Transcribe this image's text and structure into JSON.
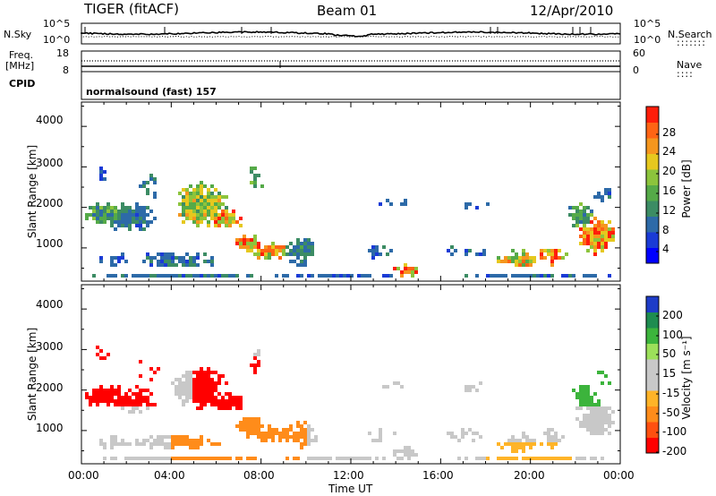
{
  "header": {
    "radar": "TIGER (fitACF)",
    "beam": "Beam 01",
    "date": "12/Apr/2010"
  },
  "left_labels": {
    "nsky": "N.Sky",
    "freq_line1": "Freq.",
    "freq_line2": "[MHz]",
    "cpid": "CPID"
  },
  "right_labels": {
    "nsearch": "N.Search",
    "nsearch_dots": ":::::::",
    "nave": "Nave",
    "nave_dots": "::::"
  },
  "noise_axis": {
    "top": "10^5",
    "bottom": "10^0"
  },
  "freq_axis": {
    "top": "18",
    "bottom": "8"
  },
  "nave_axis": {
    "top": "60",
    "bottom": "0"
  },
  "cpid_text": "normalsound (fast) 157",
  "colors": {
    "power": [
      "#0000ff",
      "#1a3bd6",
      "#2d6aa8",
      "#3c8c64",
      "#55aa48",
      "#8cc43c",
      "#e6c81e",
      "#f5961e",
      "#ff6414",
      "#ff1e0a"
    ],
    "velocity": [
      "#ff0000",
      "#ff5010",
      "#ff8c1a",
      "#ffb428",
      "#c8c8c8",
      "#c8c8c8",
      "#9ce05a",
      "#3cb43c",
      "#1e8c50",
      "#1e3cc8"
    ]
  },
  "chart_data": [
    {
      "type": "heatmap",
      "title": "",
      "ylabel": "Slant Range [km]",
      "xlabel": "",
      "x_ticks": [
        "00:00",
        "04:00",
        "08:00",
        "12:00",
        "16:00",
        "20:00",
        "00:00"
      ],
      "y_ticks": [
        1000,
        2000,
        3000,
        4000
      ],
      "xlim": [
        0,
        24
      ],
      "ylim": [
        180,
        4600
      ],
      "colorbar": {
        "label": "Power [dB]",
        "ticks": [
          4,
          8,
          12,
          16,
          20,
          24,
          28
        ],
        "range": [
          0,
          32
        ]
      }
    },
    {
      "type": "heatmap",
      "title": "",
      "ylabel": "Slant Range [km]",
      "xlabel": "Time UT",
      "x_ticks": [
        "00:00",
        "04:00",
        "08:00",
        "12:00",
        "16:00",
        "20:00",
        "00:00"
      ],
      "y_ticks": [
        1000,
        2000,
        3000,
        4000
      ],
      "xlim": [
        0,
        24
      ],
      "ylim": [
        180,
        4600
      ],
      "colorbar": {
        "label": "Velocity [m s⁻¹]",
        "ticks": [
          200,
          100,
          50,
          15,
          -15,
          -50,
          -100,
          -200
        ]
      }
    }
  ]
}
